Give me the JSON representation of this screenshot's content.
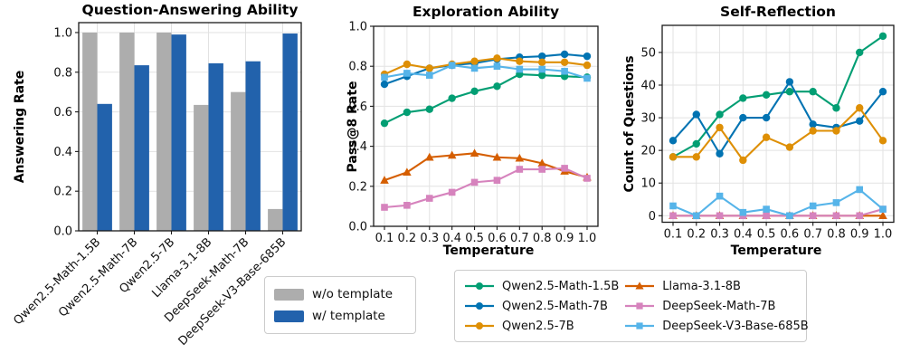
{
  "figure": {
    "background": "#ffffff"
  },
  "colors": {
    "bar_gray": "#ADADAD",
    "bar_blue": "#2262AC",
    "grid": "#E2E2E2",
    "spine": "#1a1a1a"
  },
  "chart_data": [
    {
      "type": "bar",
      "title": "Question-Answering Ability",
      "ylabel": "Answering Rate",
      "xlabel": "",
      "categories": [
        "Qwen2.5-Math-1.5B",
        "Qwen2.5-Math-7B",
        "Qwen2.5-7B",
        "Llama-3.1-8B",
        "DeepSeek-Math-7B",
        "DeepSeek-V3-Base-685B"
      ],
      "yticks": [
        "0.0",
        "0.2",
        "0.4",
        "0.6",
        "0.8",
        "1.0"
      ],
      "ylim": [
        0,
        1.05
      ],
      "grid": true,
      "series": [
        {
          "name": "w/o template",
          "color": "#ADADAD",
          "values": [
            1.0,
            1.0,
            1.0,
            0.635,
            0.7,
            0.11
          ]
        },
        {
          "name": "w/ template",
          "color": "#2262AC",
          "values": [
            0.64,
            0.835,
            0.99,
            0.845,
            0.855,
            0.995
          ]
        }
      ],
      "legend_position": "below-right"
    },
    {
      "type": "line",
      "title": "Exploration Ability",
      "ylabel": "Pass@8 Rate",
      "xlabel": "Temperature",
      "x": [
        "0.1",
        "0.2",
        "0.3",
        "0.4",
        "0.5",
        "0.6",
        "0.7",
        "0.8",
        "0.9",
        "1.0"
      ],
      "yticks": [
        "0.0",
        "0.2",
        "0.4",
        "0.6",
        "0.8",
        "1.0"
      ],
      "ylim": [
        0,
        1.0
      ],
      "grid": true,
      "series": [
        {
          "name": "Qwen2.5-Math-1.5B",
          "color": "#029E73",
          "marker": "circle",
          "values": [
            0.515,
            0.57,
            0.585,
            0.64,
            0.675,
            0.7,
            0.76,
            0.755,
            0.75,
            0.745
          ]
        },
        {
          "name": "Qwen2.5-Math-7B",
          "color": "#0173B2",
          "marker": "circle",
          "values": [
            0.71,
            0.75,
            0.79,
            0.805,
            0.815,
            0.835,
            0.845,
            0.85,
            0.86,
            0.85
          ]
        },
        {
          "name": "Qwen2.5-7B",
          "color": "#DE8F05",
          "marker": "circle",
          "values": [
            0.76,
            0.81,
            0.79,
            0.81,
            0.825,
            0.84,
            0.825,
            0.82,
            0.82,
            0.805
          ]
        },
        {
          "name": "Llama-3.1-8B",
          "color": "#D55E00",
          "marker": "triangle",
          "values": [
            0.23,
            0.27,
            0.345,
            0.355,
            0.365,
            0.345,
            0.34,
            0.315,
            0.275,
            0.245
          ]
        },
        {
          "name": "DeepSeek-Math-7B",
          "color": "#D683BD",
          "marker": "square",
          "values": [
            0.095,
            0.105,
            0.14,
            0.17,
            0.22,
            0.23,
            0.285,
            0.285,
            0.29,
            0.24
          ]
        },
        {
          "name": "DeepSeek-V3-Base-685B",
          "color": "#56B4E9",
          "marker": "square",
          "values": [
            0.745,
            0.765,
            0.755,
            0.805,
            0.79,
            0.8,
            0.785,
            0.785,
            0.775,
            0.74
          ]
        }
      ],
      "legend_position": "below"
    },
    {
      "type": "line",
      "title": "Self-Reflection",
      "ylabel": "Count of Questions",
      "xlabel": "Temperature",
      "x": [
        "0.1",
        "0.2",
        "0.3",
        "0.4",
        "0.5",
        "0.6",
        "0.7",
        "0.8",
        "0.9",
        "1.0"
      ],
      "yticks": [
        "0",
        "10",
        "20",
        "30",
        "40",
        "50"
      ],
      "ylim": [
        -2,
        58.3
      ],
      "grid": true,
      "series": [
        {
          "name": "Qwen2.5-Math-1.5B",
          "color": "#029E73",
          "marker": "circle",
          "values": [
            18,
            22,
            31,
            36,
            37,
            38,
            38,
            33,
            50,
            55
          ]
        },
        {
          "name": "Qwen2.5-Math-7B",
          "color": "#0173B2",
          "marker": "circle",
          "values": [
            23,
            31,
            19,
            30,
            30,
            41,
            28,
            27,
            29,
            38
          ]
        },
        {
          "name": "Qwen2.5-7B",
          "color": "#DE8F05",
          "marker": "circle",
          "values": [
            18,
            18,
            27,
            17,
            24,
            21,
            26,
            26,
            33,
            23
          ]
        },
        {
          "name": "Llama-3.1-8B",
          "color": "#D55E00",
          "marker": "triangle",
          "values": [
            0,
            0,
            0,
            0,
            0,
            0,
            0,
            0,
            0,
            0
          ]
        },
        {
          "name": "DeepSeek-Math-7B",
          "color": "#D683BD",
          "marker": "square",
          "values": [
            0,
            0,
            0,
            0,
            0,
            0,
            0,
            0,
            0,
            2
          ]
        },
        {
          "name": "DeepSeek-V3-Base-685B",
          "color": "#56B4E9",
          "marker": "square",
          "values": [
            3,
            0,
            6,
            1,
            2,
            0,
            3,
            4,
            8,
            2
          ]
        }
      ],
      "legend_position": "below"
    }
  ]
}
